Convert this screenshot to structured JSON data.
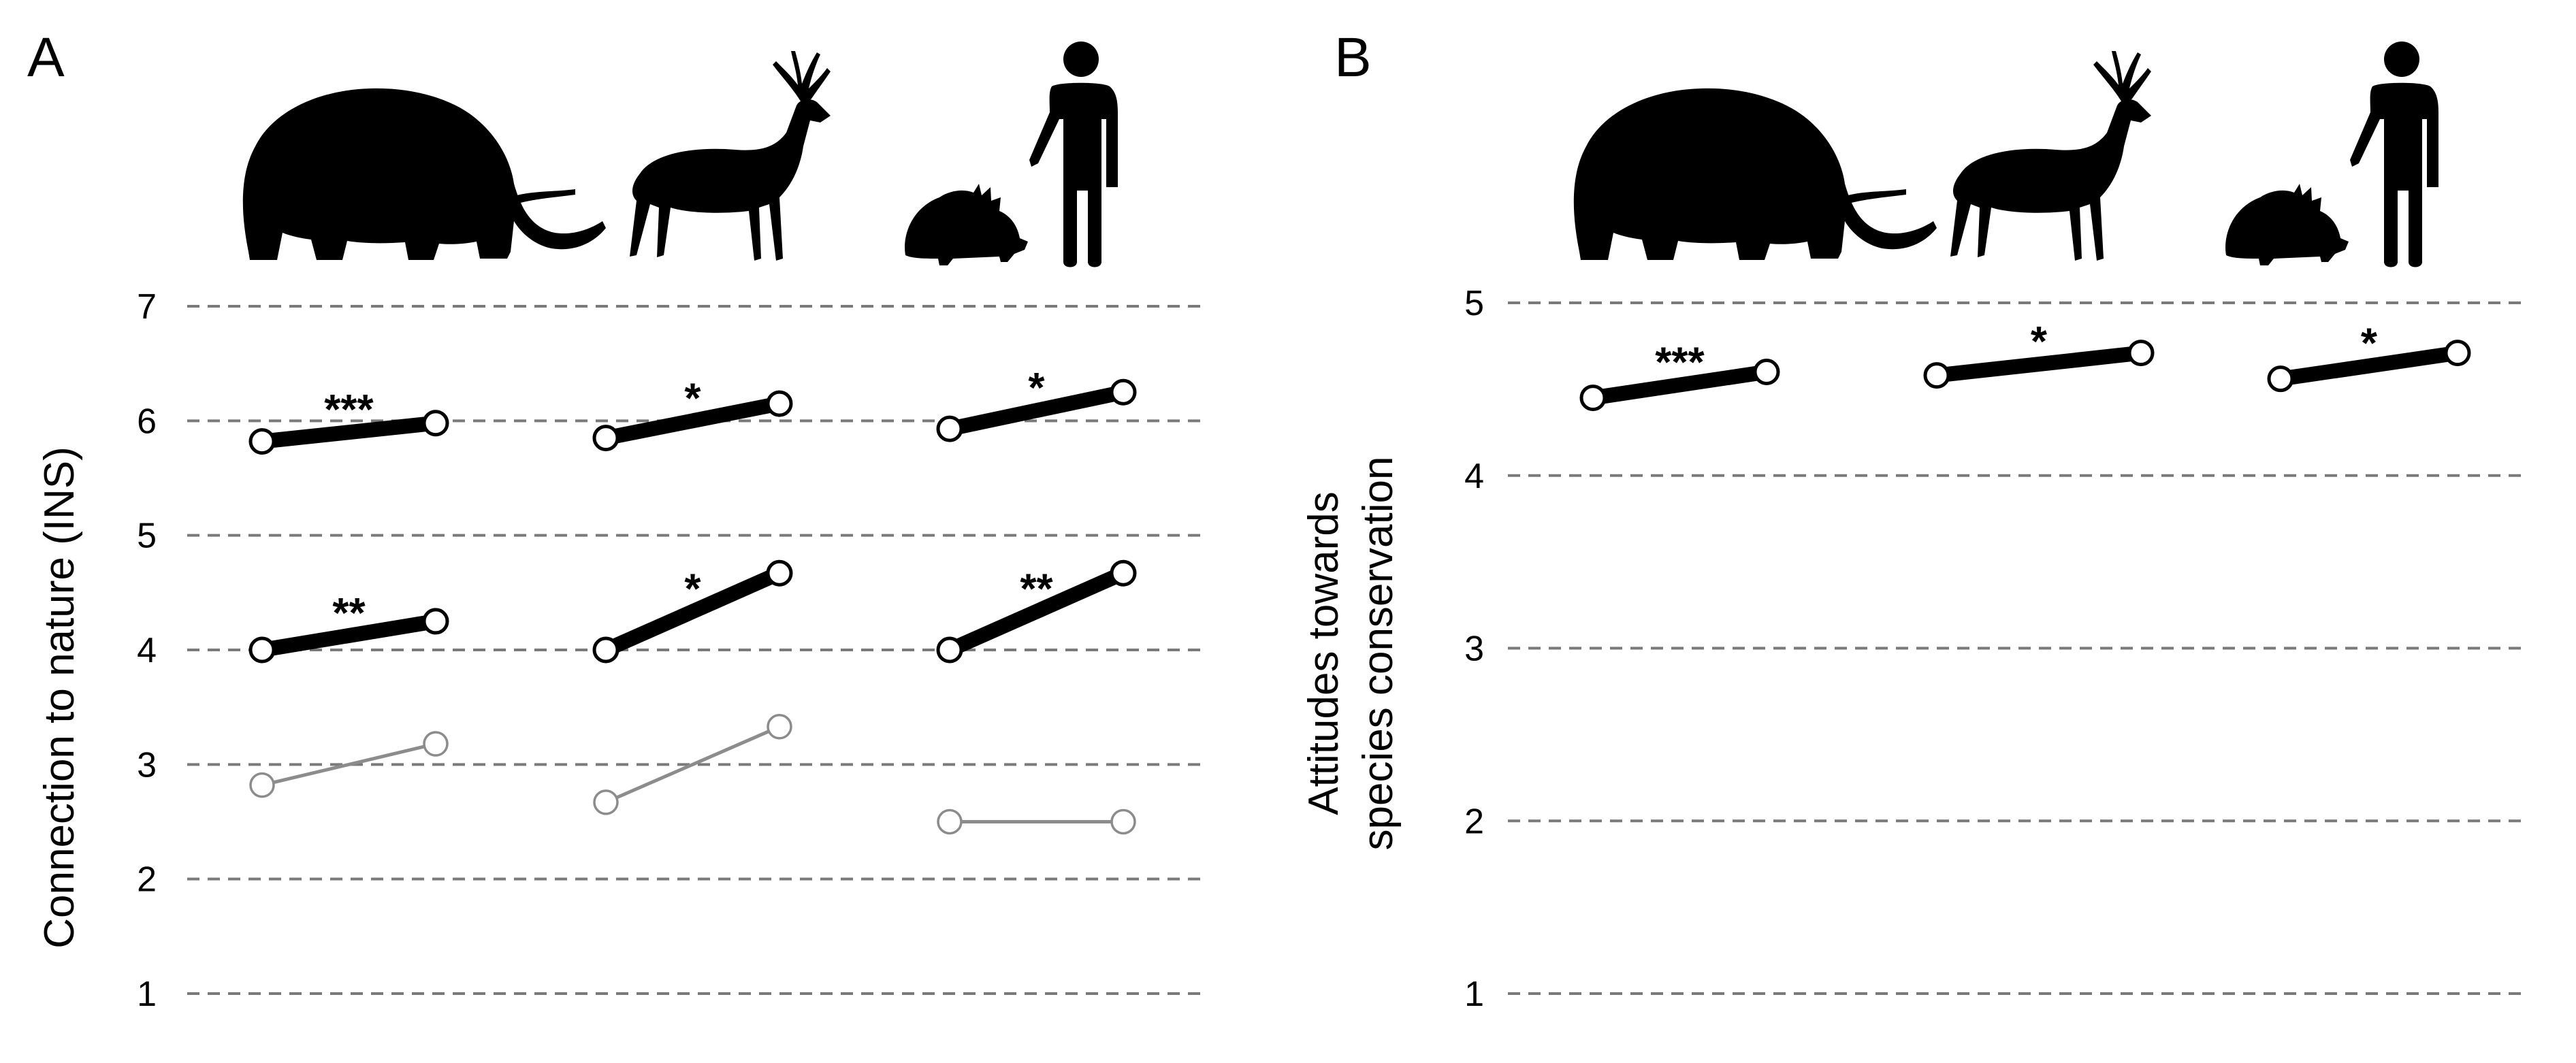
{
  "colors": {
    "strong": "#000000",
    "weak": "#8c8c8c",
    "grid": "#7a7a7a",
    "marker_fill": "#ffffff"
  },
  "icons": [
    "elephant-icon",
    "deer-icon",
    "porcupine-and-person-icon"
  ],
  "chart_data": [
    {
      "type": "line",
      "panel_label": "A",
      "ylabel": "Connection to nature (INS)",
      "ylim": [
        1,
        7
      ],
      "yticks": [
        1,
        2,
        3,
        4,
        5,
        6,
        7
      ],
      "grid": true,
      "groups": [
        "elephant",
        "deer",
        "porcupine / person"
      ],
      "pairs": [
        {
          "group": 0,
          "y0": 5.82,
          "y1": 5.98,
          "style": "strong",
          "sig": "***"
        },
        {
          "group": 1,
          "y0": 5.85,
          "y1": 6.15,
          "style": "strong",
          "sig": "*"
        },
        {
          "group": 2,
          "y0": 5.93,
          "y1": 6.25,
          "style": "strong",
          "sig": "*"
        },
        {
          "group": 0,
          "y0": 4.0,
          "y1": 4.25,
          "style": "strong",
          "sig": "**"
        },
        {
          "group": 1,
          "y0": 4.0,
          "y1": 4.67,
          "style": "strong",
          "sig": "*"
        },
        {
          "group": 2,
          "y0": 4.0,
          "y1": 4.67,
          "style": "strong",
          "sig": "**"
        },
        {
          "group": 0,
          "y0": 2.82,
          "y1": 3.18,
          "style": "weak",
          "sig": ""
        },
        {
          "group": 1,
          "y0": 2.67,
          "y1": 3.33,
          "style": "weak",
          "sig": ""
        },
        {
          "group": 2,
          "y0": 2.5,
          "y1": 2.5,
          "style": "weak",
          "sig": ""
        }
      ]
    },
    {
      "type": "line",
      "panel_label": "B",
      "ylabel_lines": [
        "Attitudes towards",
        "species conservation"
      ],
      "ylim": [
        1,
        5
      ],
      "yticks": [
        1,
        2,
        3,
        4,
        5
      ],
      "grid": true,
      "groups": [
        "elephant",
        "deer",
        "porcupine / person"
      ],
      "pairs": [
        {
          "group": 0,
          "y0": 4.45,
          "y1": 4.6,
          "style": "strong",
          "sig": "***"
        },
        {
          "group": 1,
          "y0": 4.58,
          "y1": 4.71,
          "style": "strong",
          "sig": "*"
        },
        {
          "group": 2,
          "y0": 4.56,
          "y1": 4.71,
          "style": "strong",
          "sig": "*"
        }
      ]
    }
  ]
}
